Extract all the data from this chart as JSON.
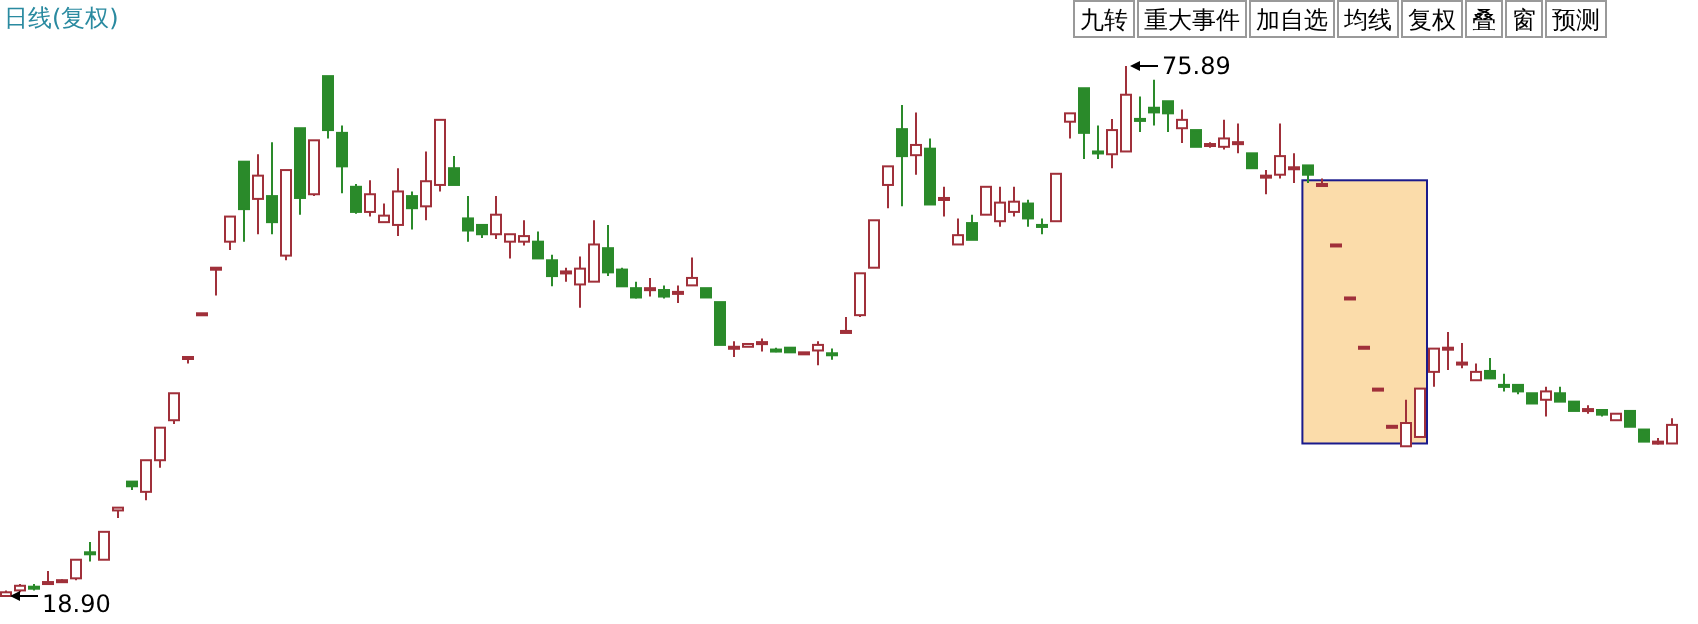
{
  "chart_data": {
    "type": "candlestick",
    "title": "日线(复权)",
    "categories": [
      null,
      null,
      null,
      null,
      null,
      null,
      null,
      null,
      null,
      null,
      null,
      null,
      null,
      null,
      null,
      null,
      null,
      null,
      null,
      null,
      null,
      null,
      null,
      null,
      null,
      null,
      null,
      null,
      null,
      null,
      null,
      null,
      null,
      null,
      null,
      null,
      null,
      null,
      null,
      null,
      null,
      null,
      null,
      null,
      null,
      null,
      null,
      null,
      null,
      null,
      null,
      null,
      null,
      null,
      null,
      null,
      null,
      null,
      null,
      null,
      null,
      null,
      null,
      null,
      null,
      null,
      null,
      null,
      null,
      null,
      null,
      null,
      null,
      null,
      null,
      null,
      null,
      null,
      null,
      null,
      null,
      null,
      null,
      null,
      null,
      null,
      null,
      null,
      null,
      null,
      null,
      null,
      null,
      null,
      null,
      null,
      null,
      null,
      null,
      null,
      null,
      null,
      null,
      null,
      null,
      null,
      null,
      null,
      null,
      null,
      null,
      null,
      null,
      null,
      null,
      null,
      null,
      null,
      null,
      null
    ],
    "ohlc": [
      [
        18.9,
        19.5,
        18.9,
        19.3
      ],
      [
        19.5,
        20.2,
        19.3,
        20.0
      ],
      [
        19.9,
        20.2,
        19.5,
        19.8
      ],
      [
        20.2,
        21.6,
        20.2,
        20.4
      ],
      [
        20.5,
        20.7,
        20.4,
        20.6
      ],
      [
        20.8,
        22.8,
        20.6,
        22.8
      ],
      [
        23.6,
        24.7,
        22.6,
        23.5
      ],
      [
        22.8,
        25.8,
        22.8,
        25.8
      ],
      [
        28.1,
        28.4,
        27.3,
        28.4
      ],
      [
        31.2,
        31.2,
        30.3,
        30.7
      ],
      [
        30.1,
        33.5,
        29.2,
        33.5
      ],
      [
        33.5,
        37.0,
        32.7,
        37.0
      ],
      [
        37.8,
        40.7,
        37.4,
        40.7
      ],
      [
        44.5,
        44.7,
        43.9,
        44.6
      ],
      [
        49.2,
        49.3,
        49.1,
        49.3
      ],
      [
        54.1,
        54.2,
        51.2,
        54.2
      ],
      [
        57.0,
        59.7,
        56.1,
        59.7
      ],
      [
        65.6,
        65.6,
        57.0,
        60.5
      ],
      [
        61.6,
        66.4,
        57.8,
        64.1
      ],
      [
        61.9,
        67.7,
        57.8,
        59.1
      ],
      [
        55.5,
        64.7,
        55.0,
        64.7
      ],
      [
        69.2,
        69.2,
        59.9,
        61.7
      ],
      [
        62.1,
        67.9,
        61.9,
        67.9
      ],
      [
        74.8,
        74.8,
        68.1,
        69.0
      ],
      [
        68.7,
        69.5,
        62.2,
        65.1
      ],
      [
        62.9,
        63.2,
        60.0,
        60.2
      ],
      [
        60.2,
        63.6,
        59.7,
        62.1
      ],
      [
        59.1,
        61.1,
        59.1,
        59.8
      ],
      [
        58.8,
        64.9,
        57.6,
        62.4
      ],
      [
        61.9,
        62.4,
        58.3,
        60.6
      ],
      [
        60.8,
        66.7,
        59.3,
        63.5
      ],
      [
        63.1,
        70.1,
        62.4,
        70.1
      ],
      [
        64.9,
        66.2,
        63.1,
        63.1
      ],
      [
        59.5,
        61.9,
        57.0,
        58.2
      ],
      [
        58.8,
        58.8,
        57.4,
        57.8
      ],
      [
        57.8,
        61.9,
        57.3,
        59.9
      ],
      [
        57.0,
        57.8,
        55.2,
        57.8
      ],
      [
        57.0,
        59.3,
        56.6,
        57.6
      ],
      [
        57.0,
        58.1,
        55.2,
        55.2
      ],
      [
        55.0,
        55.6,
        52.2,
        53.3
      ],
      [
        53.7,
        54.2,
        52.7,
        53.8
      ],
      [
        52.4,
        55.4,
        49.9,
        54.1
      ],
      [
        52.7,
        59.3,
        52.7,
        56.7
      ],
      [
        56.3,
        58.8,
        53.3,
        53.7
      ],
      [
        54.0,
        54.2,
        52.2,
        52.2
      ],
      [
        52.0,
        52.7,
        50.9,
        51.0
      ],
      [
        51.9,
        53.1,
        51.1,
        52.0
      ],
      [
        51.8,
        52.3,
        50.9,
        51.1
      ],
      [
        51.5,
        52.3,
        50.4,
        51.6
      ],
      [
        52.3,
        55.3,
        52.3,
        53.1
      ],
      [
        52.0,
        52.0,
        51.0,
        51.0
      ],
      [
        50.5,
        50.5,
        45.9,
        45.9
      ],
      [
        45.6,
        46.3,
        44.6,
        45.7
      ],
      [
        45.7,
        46.0,
        45.7,
        46.0
      ],
      [
        46.1,
        46.6,
        45.2,
        46.2
      ],
      [
        45.4,
        45.6,
        45.1,
        45.3
      ],
      [
        45.6,
        45.6,
        45.1,
        45.1
      ],
      [
        45.1,
        45.1,
        45.1,
        45.1
      ],
      [
        45.3,
        46.3,
        43.7,
        45.9
      ],
      [
        45.0,
        45.5,
        44.3,
        44.9
      ],
      [
        47.3,
        48.9,
        47.3,
        47.4
      ],
      [
        49.1,
        53.6,
        48.9,
        53.6
      ],
      [
        54.2,
        59.3,
        54.2,
        59.3
      ],
      [
        63.1,
        65.1,
        60.6,
        65.1
      ],
      [
        69.1,
        71.7,
        60.8,
        66.2
      ],
      [
        66.3,
        70.9,
        64.2,
        67.4
      ],
      [
        67.0,
        68.1,
        61.0,
        61.0
      ],
      [
        61.6,
        62.9,
        59.7,
        61.7
      ],
      [
        56.7,
        59.5,
        56.7,
        57.7
      ],
      [
        59.0,
        59.9,
        57.2,
        57.2
      ],
      [
        59.9,
        62.9,
        59.9,
        62.9
      ],
      [
        59.2,
        62.9,
        58.6,
        61.2
      ],
      [
        60.2,
        62.9,
        59.7,
        61.3
      ],
      [
        61.1,
        61.5,
        58.6,
        59.5
      ],
      [
        58.8,
        59.5,
        57.8,
        58.7
      ],
      [
        59.2,
        64.3,
        59.2,
        64.3
      ],
      [
        69.9,
        70.8,
        68.1,
        70.8
      ],
      [
        73.5,
        73.5,
        65.9,
        68.7
      ],
      [
        66.7,
        69.5,
        65.9,
        66.6
      ],
      [
        66.4,
        70.2,
        64.9,
        69.0
      ],
      [
        66.7,
        75.89,
        66.7,
        72.8
      ],
      [
        70.2,
        72.6,
        68.8,
        70.1
      ],
      [
        71.4,
        74.4,
        69.5,
        70.9
      ],
      [
        72.1,
        72.1,
        68.8,
        70.8
      ],
      [
        69.2,
        71.2,
        67.6,
        70.1
      ],
      [
        69.0,
        69.0,
        67.2,
        67.2
      ],
      [
        67.4,
        67.7,
        67.1,
        67.5
      ],
      [
        67.2,
        70.1,
        66.9,
        68.1
      ],
      [
        67.6,
        69.7,
        66.5,
        67.7
      ],
      [
        66.5,
        66.5,
        64.9,
        64.9
      ],
      [
        64.0,
        64.7,
        62.1,
        64.1
      ],
      [
        64.2,
        69.7,
        63.8,
        66.2
      ],
      [
        64.9,
        66.5,
        63.3,
        65.0
      ],
      [
        65.2,
        65.2,
        63.3,
        64.2
      ],
      [
        63.1,
        63.8,
        63.1,
        63.2
      ],
      [
        56.7,
        56.7,
        56.7,
        56.7
      ],
      [
        51.0,
        51.0,
        51.0,
        51.0
      ],
      [
        45.7,
        45.7,
        45.7,
        45.7
      ],
      [
        41.2,
        41.2,
        41.2,
        41.2
      ],
      [
        37.2,
        37.2,
        37.2,
        37.2
      ],
      [
        35.0,
        40.0,
        35.0,
        37.5
      ],
      [
        36.0,
        41.2,
        36.0,
        41.2
      ],
      [
        43.0,
        45.5,
        41.4,
        45.5
      ],
      [
        45.5,
        47.3,
        43.2,
        45.6
      ],
      [
        43.9,
        46.1,
        43.4,
        44.0
      ],
      [
        42.1,
        43.9,
        42.1,
        43.0
      ],
      [
        43.1,
        44.5,
        42.3,
        42.3
      ],
      [
        41.6,
        42.8,
        40.9,
        41.5
      ],
      [
        41.6,
        41.6,
        40.6,
        40.9
      ],
      [
        40.7,
        40.7,
        39.6,
        39.6
      ],
      [
        40.0,
        41.4,
        38.2,
        40.9
      ],
      [
        40.7,
        41.4,
        39.8,
        39.8
      ],
      [
        39.8,
        39.8,
        38.8,
        38.8
      ],
      [
        38.9,
        39.4,
        38.5,
        39.0
      ],
      [
        38.9,
        38.9,
        38.2,
        38.4
      ],
      [
        37.8,
        38.5,
        37.8,
        38.5
      ],
      [
        38.8,
        38.8,
        37.1,
        37.1
      ],
      [
        36.8,
        36.8,
        35.5,
        35.5
      ],
      [
        35.5,
        35.9,
        35.2,
        35.5
      ],
      [
        35.3,
        38.0,
        35.3,
        37.3
      ]
    ],
    "annotations": [
      "九转",
      "重大事件",
      "加自选",
      "均线",
      "复权",
      "叠",
      "窗",
      "预测",
      "75.89",
      "18.90"
    ]
  }
}
